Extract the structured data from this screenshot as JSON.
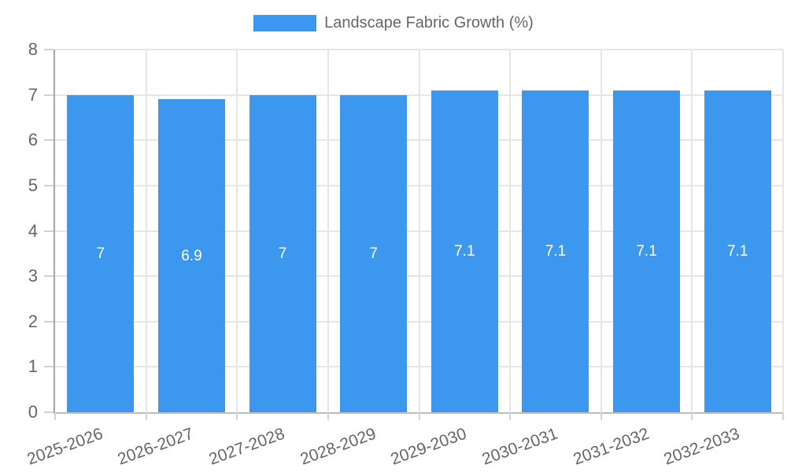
{
  "legend": {
    "label": "Landscape Fabric Growth (%)"
  },
  "chart_data": {
    "type": "bar",
    "title": "Landscape Fabric Growth (%)",
    "categories": [
      "2025-2026",
      "2026-2027",
      "2027-2028",
      "2028-2029",
      "2029-2030",
      "2030-2031",
      "2031-2032",
      "2032-2033"
    ],
    "values": [
      7,
      6.9,
      7,
      7,
      7.1,
      7.1,
      7.1,
      7.1
    ],
    "bar_labels": [
      "7",
      "6.9",
      "7",
      "7",
      "7.1",
      "7.1",
      "7.1",
      "7.1"
    ],
    "xlabel": "",
    "ylabel": "",
    "ylim": [
      0,
      8
    ],
    "yticks": [
      0,
      1,
      2,
      3,
      4,
      5,
      6,
      7,
      8
    ],
    "grid": true,
    "legend_position": "top",
    "colors": {
      "bar": "#3B98EE",
      "bar_label": "#FFFFFF",
      "axis_text": "#666666",
      "gridline": "#E6E6E6",
      "y_axis_line": "#A6A6A6",
      "x_axis_line": "#BDBDBD",
      "tick": "#D2D2D2"
    }
  }
}
